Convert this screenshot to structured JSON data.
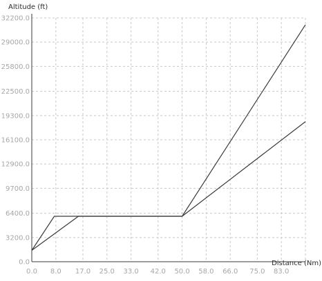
{
  "chart_data": {
    "type": "line",
    "title": "",
    "ylabel": "Altitude (ft)",
    "xlabel": "Distance (Nm)",
    "x_ticks": [
      "0.0",
      "8.0",
      "17.0",
      "25.0",
      "33.0",
      "42.0",
      "50.0",
      "58.0",
      "66.0",
      "75.0",
      "83.0"
    ],
    "y_ticks": [
      "0.0",
      "3200.0",
      "6400.0",
      "9700.0",
      "12900.0",
      "16100.0",
      "19300.0",
      "22500.0",
      "25800.0",
      "29000.0",
      "32200.0"
    ],
    "xlim": [
      0,
      91
    ],
    "ylim": [
      0,
      32200
    ],
    "grid": true,
    "colors": {
      "line": "#3a3a3a",
      "grid": "#c8c8c8",
      "axis": "#3a3a3a"
    },
    "series": [
      {
        "x": [
          0,
          7.5,
          50,
          91
        ],
        "y": [
          1500,
          6000,
          6000,
          31300
        ]
      },
      {
        "x": [
          0,
          15.5,
          50,
          91
        ],
        "y": [
          1500,
          6000,
          6000,
          18500
        ]
      }
    ]
  }
}
